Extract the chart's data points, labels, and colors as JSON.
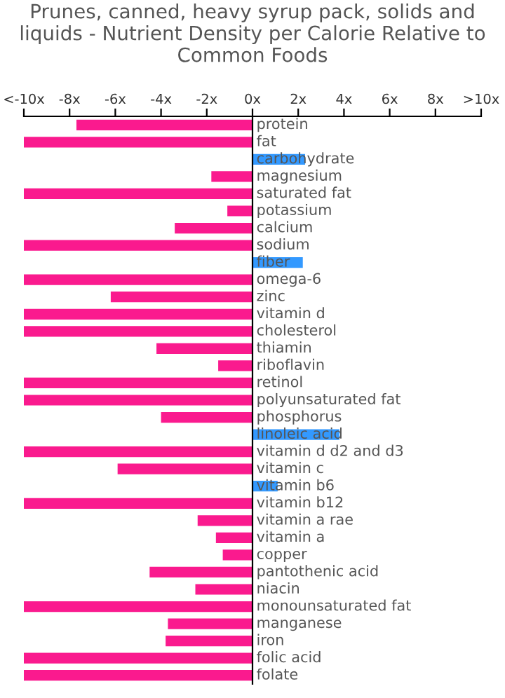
{
  "chart_data": {
    "type": "bar",
    "orientation": "horizontal",
    "title": "Prunes, canned, heavy syrup pack, solids and liquids - Nutrient Density per Calorie Relative to Common Foods",
    "categories": [
      "protein",
      "fat",
      "carbohydrate",
      "magnesium",
      "saturated fat",
      "potassium",
      "calcium",
      "sodium",
      "fiber",
      "omega-6",
      "zinc",
      "vitamin d",
      "cholesterol",
      "thiamin",
      "riboflavin",
      "retinol",
      "polyunsaturated fat",
      "phosphorus",
      "linoleic acid",
      "vitamin d d2 and d3",
      "vitamin c",
      "vitamin b6",
      "vitamin b12",
      "vitamin a rae",
      "vitamin a",
      "copper",
      "pantothenic acid",
      "niacin",
      "monounsaturated fat",
      "manganese",
      "iron",
      "folic acid",
      "folate"
    ],
    "values": [
      -7.7,
      -10,
      2.3,
      -1.8,
      -10,
      -1.1,
      -3.4,
      -10,
      2.2,
      -10,
      -6.2,
      -10,
      -10,
      -4.2,
      -1.5,
      -10,
      -10,
      -4.0,
      3.8,
      -10,
      -5.9,
      1.1,
      -10,
      -2.4,
      -1.6,
      -1.3,
      -4.5,
      -2.5,
      -10,
      -3.7,
      -3.8,
      -10,
      -10
    ],
    "colors": [
      "#fa1a8e",
      "#fa1a8e",
      "#3399ff",
      "#fa1a8e",
      "#fa1a8e",
      "#fa1a8e",
      "#fa1a8e",
      "#fa1a8e",
      "#3399ff",
      "#fa1a8e",
      "#fa1a8e",
      "#fa1a8e",
      "#fa1a8e",
      "#fa1a8e",
      "#fa1a8e",
      "#fa1a8e",
      "#fa1a8e",
      "#fa1a8e",
      "#3399ff",
      "#fa1a8e",
      "#fa1a8e",
      "#3399ff",
      "#fa1a8e",
      "#fa1a8e",
      "#fa1a8e",
      "#fa1a8e",
      "#fa1a8e",
      "#fa1a8e",
      "#fa1a8e",
      "#fa1a8e",
      "#fa1a8e",
      "#fa1a8e",
      "#fa1a8e"
    ],
    "xlim": [
      -10,
      10
    ],
    "xticks": [
      {
        "value": -10,
        "label": "<-10x"
      },
      {
        "value": -8,
        "label": "-8x"
      },
      {
        "value": -6,
        "label": "-6x"
      },
      {
        "value": -4,
        "label": "-4x"
      },
      {
        "value": -2,
        "label": "-2x"
      },
      {
        "value": 0,
        "label": "0x"
      },
      {
        "value": 2,
        "label": "2x"
      },
      {
        "value": 4,
        "label": "4x"
      },
      {
        "value": 6,
        "label": "6x"
      },
      {
        "value": 8,
        "label": "8x"
      },
      {
        "value": 10,
        "label": ">10x"
      }
    ]
  }
}
